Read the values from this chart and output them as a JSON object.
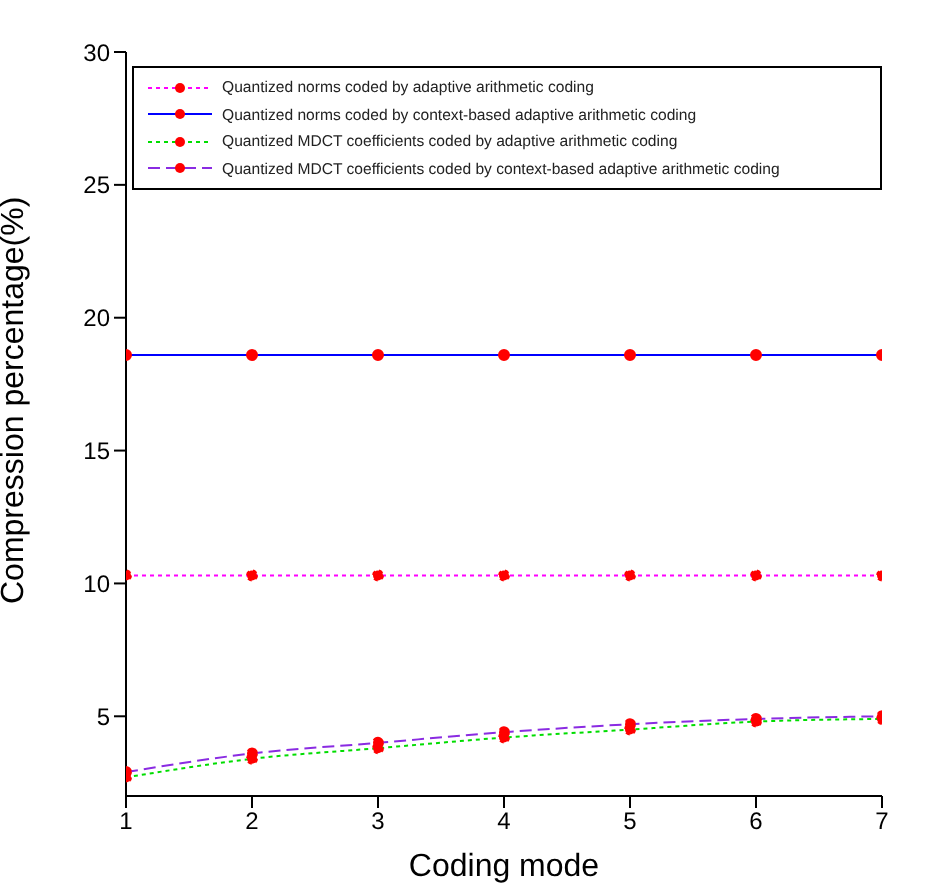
{
  "chart_data": {
    "type": "line",
    "xlabel": "Coding mode",
    "ylabel": "Compression percentage(%)",
    "x": [
      1,
      2,
      3,
      4,
      5,
      6,
      7
    ],
    "series": [
      {
        "name": "Quantized norms coded by adaptive arithmetic coding",
        "color": "#ff00ff",
        "line_style": "dotted",
        "values": [
          10.3,
          10.3,
          10.3,
          10.3,
          10.3,
          10.3,
          10.3
        ]
      },
      {
        "name": "Quantized norms coded by context-based adaptive arithmetic coding",
        "color": "#0000ff",
        "line_style": "solid",
        "values": [
          18.6,
          18.6,
          18.6,
          18.6,
          18.6,
          18.6,
          18.6
        ]
      },
      {
        "name": "Quantized MDCT coefficients coded by adaptive arithmetic coding",
        "color": "#00dd00",
        "line_style": "dotted",
        "values": [
          2.7,
          3.4,
          3.8,
          4.2,
          4.5,
          4.8,
          4.9
        ]
      },
      {
        "name": "Quantized MDCT coefficients coded by context-based adaptive arithmetic coding",
        "color": "#8a2be2",
        "line_style": "dashed",
        "values": [
          2.9,
          3.6,
          4.0,
          4.4,
          4.7,
          4.9,
          5.0
        ]
      }
    ],
    "xlim": [
      1,
      7
    ],
    "xticks": [
      1,
      2,
      3,
      4,
      5,
      6,
      7
    ],
    "ylim": [
      2,
      30
    ],
    "yticks": [
      5,
      10,
      15,
      20,
      25,
      30
    ],
    "legend": "top",
    "marker": "circle"
  }
}
